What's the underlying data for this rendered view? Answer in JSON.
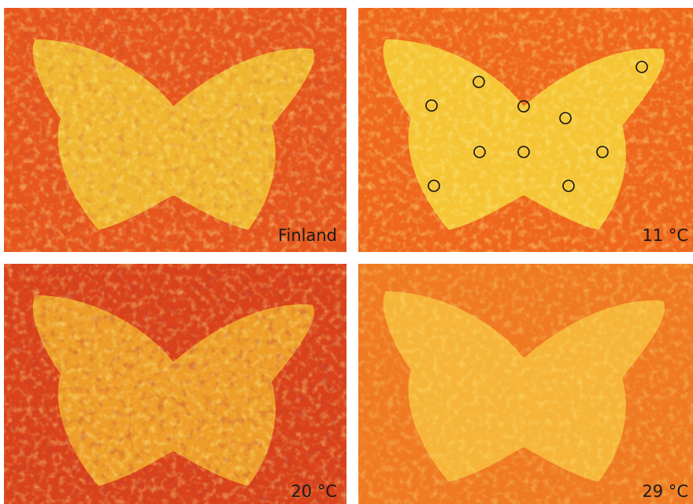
{
  "panels": [
    {
      "label": "Finland"
    },
    {
      "label": "11 °C"
    },
    {
      "label": "20 °C"
    },
    {
      "label": "29 °C"
    }
  ]
}
